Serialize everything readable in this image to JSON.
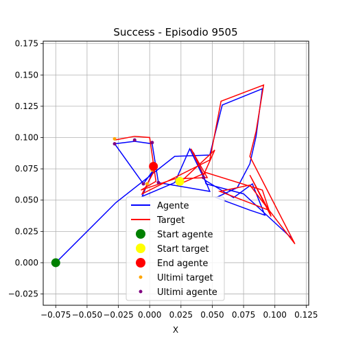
{
  "chart_data": {
    "type": "line",
    "title": "Success - Episodio 9505",
    "xlabel": "X",
    "ylabel": "",
    "xlim": [
      -0.085,
      0.127
    ],
    "ylim": [
      -0.034,
      0.177
    ],
    "xticks": [
      -0.075,
      -0.05,
      -0.025,
      0.0,
      0.025,
      0.05,
      0.075,
      0.1,
      0.125
    ],
    "xtick_labels": [
      "−0.075",
      "−0.050",
      "−0.025",
      "0.000",
      "0.025",
      "0.050",
      "0.075",
      "0.100",
      "0.125"
    ],
    "yticks": [
      -0.025,
      0.0,
      0.025,
      0.05,
      0.075,
      0.1,
      0.125,
      0.15,
      0.175
    ],
    "ytick_labels": [
      "−0.025",
      "0.000",
      "0.025",
      "0.050",
      "0.075",
      "0.100",
      "0.125",
      "0.150",
      "0.175"
    ],
    "grid": true,
    "legend_placement": "lower-center",
    "series": [
      {
        "name": "Agente",
        "kind": "line",
        "color": "#0000ff",
        "points": [
          [
            -0.075,
            0.0
          ],
          [
            -0.027,
            0.048
          ],
          [
            0.02,
            0.085
          ],
          [
            0.048,
            0.086
          ],
          [
            0.058,
            0.126
          ],
          [
            0.09,
            0.139
          ],
          [
            0.085,
            0.101
          ],
          [
            0.08,
            0.079
          ],
          [
            0.07,
            0.06
          ],
          [
            0.053,
            0.052
          ],
          [
            0.08,
            0.042
          ],
          [
            0.092,
            0.038
          ],
          [
            0.082,
            0.063
          ],
          [
            0.067,
            0.052
          ],
          [
            0.044,
            0.066
          ],
          [
            0.032,
            0.091
          ],
          [
            0.02,
            0.064
          ],
          [
            -0.006,
            0.053
          ],
          [
            0.003,
            0.074
          ],
          [
            -0.005,
            0.063
          ],
          [
            -0.028,
            0.095
          ],
          [
            -0.012,
            0.097
          ],
          [
            0.002,
            0.095
          ],
          [
            0.007,
            0.064
          ],
          [
            0.048,
            0.057
          ],
          [
            0.035,
            0.088
          ],
          [
            0.043,
            0.07
          ],
          [
            0.045,
            0.063
          ],
          [
            0.075,
            0.055
          ],
          [
            0.113,
            0.02
          ]
        ]
      },
      {
        "name": "Target",
        "kind": "line",
        "color": "#ff0000",
        "points": [
          [
            -0.028,
            0.098
          ],
          [
            -0.012,
            0.101
          ],
          [
            0.0,
            0.1
          ],
          [
            0.005,
            0.065
          ],
          [
            -0.007,
            0.058
          ],
          [
            0.02,
            0.067
          ],
          [
            0.046,
            0.068
          ],
          [
            0.033,
            0.091
          ],
          [
            0.043,
            0.07
          ],
          [
            0.052,
            0.09
          ],
          [
            0.022,
            0.062
          ],
          [
            0.045,
            0.072
          ],
          [
            0.09,
            0.058
          ],
          [
            0.097,
            0.037
          ],
          [
            0.08,
            0.07
          ],
          [
            0.095,
            0.042
          ],
          [
            0.056,
            0.057
          ],
          [
            0.08,
            0.062
          ],
          [
            0.116,
            0.015
          ],
          [
            0.08,
            0.085
          ],
          [
            0.085,
            0.105
          ],
          [
            0.091,
            0.142
          ],
          [
            0.057,
            0.129
          ],
          [
            0.048,
            0.082
          ],
          [
            -0.006,
            0.055
          ],
          [
            0.005,
            0.076
          ]
        ]
      },
      {
        "name": "Start agente",
        "kind": "marker",
        "color": "#008000",
        "points": [
          [
            -0.075,
            0.0
          ]
        ]
      },
      {
        "name": "Start target",
        "kind": "marker",
        "color": "#ffff00",
        "points": [
          [
            0.024,
            0.065
          ]
        ]
      },
      {
        "name": "End agente",
        "kind": "marker",
        "color": "#ff0000",
        "points": [
          [
            0.003,
            0.077
          ]
        ]
      },
      {
        "name": "Ultimi target",
        "kind": "small-marker",
        "color": "#ffa500",
        "points": [
          [
            -0.028,
            0.099
          ],
          [
            -0.002,
            0.063
          ],
          [
            0.002,
            0.074
          ]
        ]
      },
      {
        "name": "Ultimi agente",
        "kind": "small-marker",
        "color": "#800080",
        "points": [
          [
            -0.028,
            0.095
          ],
          [
            -0.012,
            0.098
          ],
          [
            0.002,
            0.096
          ],
          [
            0.007,
            0.064
          ],
          [
            -0.005,
            0.063
          ],
          [
            0.043,
            0.068
          ]
        ]
      }
    ]
  }
}
